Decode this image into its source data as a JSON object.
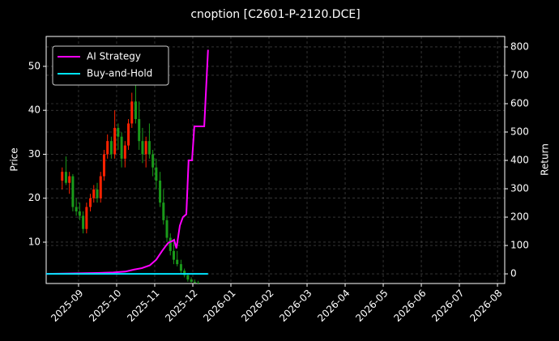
{
  "chart_data": {
    "type": "candlestick",
    "title": "cnoption [C2601-P-2120.DCE]",
    "ylabel": "Price",
    "y2label": "Return",
    "xlim": [
      0.15,
      12.19
    ],
    "xticks": [
      {
        "value": 1,
        "label": "2025-09"
      },
      {
        "value": 2,
        "label": "2025-10"
      },
      {
        "value": 3,
        "label": "2025-11"
      },
      {
        "value": 4,
        "label": "2025-12"
      },
      {
        "value": 5,
        "label": "2026-01"
      },
      {
        "value": 6,
        "label": "2026-02"
      },
      {
        "value": 7,
        "label": "2026-03"
      },
      {
        "value": 8,
        "label": "2026-04"
      },
      {
        "value": 9,
        "label": "2026-05"
      },
      {
        "value": 10,
        "label": "2026-06"
      },
      {
        "value": 11,
        "label": "2026-07"
      },
      {
        "value": 12,
        "label": "2026-08"
      }
    ],
    "ylim": [
      0.6,
      56.8
    ],
    "yticks": [
      10,
      20,
      30,
      40,
      50
    ],
    "y2lim": [
      -34,
      837
    ],
    "y2ticks": [
      0,
      100,
      200,
      300,
      400,
      500,
      600,
      700,
      800
    ],
    "grid": true,
    "legend": "upper left",
    "up_color": "#ff2200",
    "down_color": "#1a9a1a",
    "candles": {
      "x": [
        0.57,
        0.67,
        0.76,
        0.85,
        0.94,
        1.03,
        1.12,
        1.21,
        1.31,
        1.4,
        1.49,
        1.58,
        1.67,
        1.76,
        1.86,
        1.95,
        2.04,
        2.13,
        2.22,
        2.31,
        2.4,
        2.5,
        2.59,
        2.68,
        2.77,
        2.86,
        2.95,
        3.04,
        3.14,
        3.23,
        3.32,
        3.41,
        3.5,
        3.59,
        3.69,
        3.78,
        3.87,
        3.96,
        4.05,
        4.14
      ],
      "open": [
        24,
        26,
        23.5,
        25,
        18,
        17,
        16,
        13,
        18,
        20,
        22,
        20,
        25,
        30,
        33,
        30,
        36,
        34,
        29,
        32,
        37,
        42,
        38,
        33,
        30,
        33,
        30,
        27,
        24,
        19,
        15,
        11,
        8,
        6,
        5,
        3.5,
        2.5,
        1.5,
        1,
        0.8
      ],
      "high": [
        27,
        29.5,
        26,
        25.5,
        20,
        19,
        17,
        19,
        21,
        23,
        23.5,
        26,
        31,
        34.5,
        34,
        40,
        37,
        35,
        33,
        38,
        44,
        46,
        42,
        36,
        34,
        37,
        31,
        29,
        26,
        22,
        16,
        12,
        10,
        8,
        6,
        4,
        3,
        2,
        1.5,
        1.2
      ],
      "low": [
        22,
        23,
        21,
        17,
        16,
        15,
        12,
        12,
        17,
        19,
        19,
        19,
        24,
        29,
        29,
        29,
        31,
        27,
        27,
        31,
        36,
        37,
        31,
        28,
        27,
        29,
        25,
        22,
        18,
        14,
        10,
        7,
        5,
        4.5,
        3,
        2,
        1,
        0.8,
        0.7,
        0.6
      ],
      "close": [
        26,
        23.5,
        25,
        18,
        17,
        16,
        13,
        18,
        20,
        22,
        20,
        25,
        30,
        33,
        30,
        36,
        34,
        29,
        32,
        37,
        42,
        38,
        33,
        30,
        33,
        30,
        27,
        24,
        19,
        15,
        11,
        8,
        6,
        5,
        3.5,
        2.5,
        1.5,
        1,
        0.8,
        0.7
      ]
    },
    "series": [
      {
        "name": "AI Strategy",
        "color": "#ff00ff",
        "axis": "y2",
        "x": [
          0.15,
          0.64,
          1.06,
          1.49,
          1.91,
          2.23,
          2.45,
          2.66,
          2.87,
          3.04,
          3.19,
          3.3,
          3.36,
          3.45,
          3.51,
          3.57,
          3.66,
          3.74,
          3.83,
          3.89,
          3.98,
          4.04,
          4.3,
          4.4
        ],
        "values": [
          0,
          1,
          2,
          3,
          5,
          8,
          15,
          20,
          30,
          50,
          80,
          100,
          110,
          115,
          120,
          90,
          170,
          200,
          210,
          400,
          400,
          520,
          520,
          790
        ]
      },
      {
        "name": "Buy-and-Hold",
        "color": "#00e5ff",
        "axis": "y2",
        "x": [
          0.15,
          4.4
        ],
        "values": [
          0,
          0
        ]
      }
    ]
  }
}
